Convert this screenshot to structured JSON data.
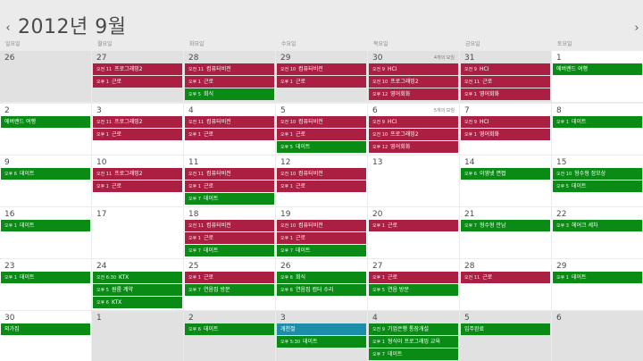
{
  "header": {
    "title": "2012년 9월",
    "prev_icon": "chevron-left-icon",
    "next_icon": "chevron-right-icon"
  },
  "weekdays": [
    "일요일",
    "월요일",
    "화요일",
    "수요일",
    "목요일",
    "금요일",
    "토요일"
  ],
  "colors": {
    "red": "#ab1f43",
    "green": "#0a8b15",
    "teal": "#1d8ea9",
    "cell": "#ffffff",
    "other_month": "#e1e1e1",
    "background": "#ebebeb"
  },
  "weeks": [
    [
      {
        "day": "26",
        "other": true,
        "events": []
      },
      {
        "day": "27",
        "other": true,
        "events": [
          {
            "time": "오전 11",
            "title": "프로그래밍2",
            "color": "red"
          },
          {
            "time": "오후 1",
            "title": "근로",
            "color": "red"
          }
        ]
      },
      {
        "day": "28",
        "other": true,
        "events": [
          {
            "time": "오전 11",
            "title": "컴퓨터비전",
            "color": "red"
          },
          {
            "time": "오후 1",
            "title": "근로",
            "color": "red"
          },
          {
            "time": "오후 5",
            "title": "회식",
            "color": "green"
          }
        ]
      },
      {
        "day": "29",
        "other": true,
        "events": [
          {
            "time": "오전 10",
            "title": "컴퓨터비전",
            "color": "red"
          },
          {
            "time": "오후 1",
            "title": "근로",
            "color": "red"
          }
        ]
      },
      {
        "day": "30",
        "other": true,
        "more": "4개의 모임",
        "events": [
          {
            "time": "오전 9",
            "title": "HCI",
            "color": "red"
          },
          {
            "time": "오전 10",
            "title": "프로그래밍2",
            "color": "red"
          },
          {
            "time": "오후 12",
            "title": "영어회화",
            "color": "red"
          }
        ]
      },
      {
        "day": "31",
        "other": true,
        "events": [
          {
            "time": "오전 9",
            "title": "HCI",
            "color": "red"
          },
          {
            "time": "오전 11",
            "title": "근로",
            "color": "red"
          },
          {
            "time": "오후 1",
            "title": "영어회화",
            "color": "red"
          }
        ]
      },
      {
        "day": "1",
        "other": false,
        "events": [
          {
            "time": "",
            "title": "에버랜드 여행",
            "color": "green"
          }
        ]
      }
    ],
    [
      {
        "day": "2",
        "other": false,
        "events": [
          {
            "time": "",
            "title": "에버랜드 여행",
            "color": "green"
          }
        ]
      },
      {
        "day": "3",
        "other": false,
        "events": [
          {
            "time": "오전 11",
            "title": "프로그래밍2",
            "color": "red"
          },
          {
            "time": "오후 1",
            "title": "근로",
            "color": "red"
          }
        ]
      },
      {
        "day": "4",
        "other": false,
        "events": [
          {
            "time": "오전 11",
            "title": "컴퓨터비전",
            "color": "red"
          },
          {
            "time": "오후 1",
            "title": "근로",
            "color": "red"
          }
        ]
      },
      {
        "day": "5",
        "other": false,
        "events": [
          {
            "time": "오전 10",
            "title": "컴퓨터비전",
            "color": "red"
          },
          {
            "time": "오후 1",
            "title": "근로",
            "color": "red"
          },
          {
            "time": "오후 5",
            "title": "데이트",
            "color": "green"
          }
        ]
      },
      {
        "day": "6",
        "other": false,
        "more": "5개의 모임",
        "events": [
          {
            "time": "오전 9",
            "title": "HCI",
            "color": "red"
          },
          {
            "time": "오전 10",
            "title": "프로그래밍2",
            "color": "red"
          },
          {
            "time": "오후 12",
            "title": "영어회화",
            "color": "red"
          }
        ]
      },
      {
        "day": "7",
        "other": false,
        "events": [
          {
            "time": "오전 9",
            "title": "HCI",
            "color": "red"
          },
          {
            "time": "오후 1",
            "title": "영어회화",
            "color": "red"
          }
        ]
      },
      {
        "day": "8",
        "other": false,
        "events": [
          {
            "time": "오후 1",
            "title": "데이트",
            "color": "green"
          }
        ]
      }
    ],
    [
      {
        "day": "9",
        "other": false,
        "events": [
          {
            "time": "오후 6",
            "title": "데이트",
            "color": "green"
          }
        ]
      },
      {
        "day": "10",
        "other": false,
        "events": [
          {
            "time": "오전 11",
            "title": "프로그래밍2",
            "color": "red"
          },
          {
            "time": "오후 1",
            "title": "근로",
            "color": "red"
          }
        ]
      },
      {
        "day": "11",
        "other": false,
        "events": [
          {
            "time": "오전 11",
            "title": "컴퓨터비전",
            "color": "red"
          },
          {
            "time": "오후 1",
            "title": "근로",
            "color": "red"
          },
          {
            "time": "오후 7",
            "title": "데이트",
            "color": "green"
          }
        ]
      },
      {
        "day": "12",
        "other": false,
        "events": [
          {
            "time": "오전 10",
            "title": "컴퓨터비전",
            "color": "red"
          },
          {
            "time": "오후 1",
            "title": "근로",
            "color": "red"
          }
        ]
      },
      {
        "day": "13",
        "other": false,
        "events": []
      },
      {
        "day": "14",
        "other": false,
        "events": [
          {
            "time": "오후 6",
            "title": "이영넷 면접",
            "color": "green"
          }
        ]
      },
      {
        "day": "15",
        "other": false,
        "events": [
          {
            "time": "오전 10",
            "title": "형수형 정모상",
            "color": "green"
          },
          {
            "time": "오후 5",
            "title": "데이트",
            "color": "green"
          }
        ]
      }
    ],
    [
      {
        "day": "16",
        "other": false,
        "events": [
          {
            "time": "오후 1",
            "title": "데이트",
            "color": "green"
          }
        ]
      },
      {
        "day": "17",
        "other": false,
        "events": []
      },
      {
        "day": "18",
        "other": false,
        "events": [
          {
            "time": "오전 11",
            "title": "컴퓨터비전",
            "color": "red"
          },
          {
            "time": "오후 1",
            "title": "근로",
            "color": "red"
          },
          {
            "time": "오후 7",
            "title": "데이트",
            "color": "green"
          }
        ]
      },
      {
        "day": "19",
        "other": false,
        "events": [
          {
            "time": "오전 10",
            "title": "컴퓨터비전",
            "color": "red"
          },
          {
            "time": "오후 1",
            "title": "근로",
            "color": "red"
          },
          {
            "time": "오후 7",
            "title": "데이트",
            "color": "green"
          }
        ]
      },
      {
        "day": "20",
        "other": false,
        "events": [
          {
            "time": "오후 1",
            "title": "근로",
            "color": "red"
          }
        ]
      },
      {
        "day": "21",
        "other": false,
        "events": [
          {
            "time": "오후 7",
            "title": "형수형 만남",
            "color": "green"
          }
        ]
      },
      {
        "day": "22",
        "other": false,
        "events": [
          {
            "time": "오후 3",
            "title": "헤어크 세차",
            "color": "green"
          }
        ]
      }
    ],
    [
      {
        "day": "23",
        "other": false,
        "events": [
          {
            "time": "오후 1",
            "title": "데이트",
            "color": "green"
          }
        ]
      },
      {
        "day": "24",
        "other": false,
        "events": [
          {
            "time": "오전 6:30",
            "title": "KTX",
            "color": "green"
          },
          {
            "time": "오후 5",
            "title": "원룸 계약",
            "color": "green"
          },
          {
            "time": "오후 6",
            "title": "KTX",
            "color": "green"
          }
        ]
      },
      {
        "day": "25",
        "other": false,
        "events": [
          {
            "time": "오후 1",
            "title": "근로",
            "color": "red"
          },
          {
            "time": "오후 7",
            "title": "연음집 방문",
            "color": "green"
          }
        ]
      },
      {
        "day": "26",
        "other": false,
        "events": [
          {
            "time": "오후 6",
            "title": "회식",
            "color": "green"
          },
          {
            "time": "오후 6",
            "title": "연음집 컴터 수리",
            "color": "green"
          }
        ]
      },
      {
        "day": "27",
        "other": false,
        "events": [
          {
            "time": "오후 1",
            "title": "근로",
            "color": "red"
          },
          {
            "time": "오후 5",
            "title": "연음 방문",
            "color": "green"
          }
        ]
      },
      {
        "day": "28",
        "other": false,
        "events": [
          {
            "time": "오전 11",
            "title": "근로",
            "color": "red"
          }
        ]
      },
      {
        "day": "29",
        "other": false,
        "events": [
          {
            "time": "오후 1",
            "title": "데이트",
            "color": "green"
          }
        ]
      }
    ],
    [
      {
        "day": "30",
        "other": false,
        "events": [
          {
            "time": "",
            "title": "외가집",
            "color": "green"
          }
        ]
      },
      {
        "day": "1",
        "other": true,
        "events": []
      },
      {
        "day": "2",
        "other": true,
        "events": [
          {
            "time": "오후 6",
            "title": "데이트",
            "color": "green"
          }
        ]
      },
      {
        "day": "3",
        "other": true,
        "events": [
          {
            "time": "",
            "title": "개천절",
            "color": "teal"
          },
          {
            "time": "오후 5:30",
            "title": "데이트",
            "color": "green"
          }
        ]
      },
      {
        "day": "4",
        "other": true,
        "events": [
          {
            "time": "오전 9",
            "title": "기업은행 통장개설",
            "color": "green"
          },
          {
            "time": "오후 1",
            "title": "형식이 프로그래밍 교육",
            "color": "green"
          },
          {
            "time": "오후 7",
            "title": "데이트",
            "color": "green"
          }
        ]
      },
      {
        "day": "5",
        "other": true,
        "events": [
          {
            "time": "",
            "title": "입주완료",
            "color": "green"
          }
        ]
      },
      {
        "day": "6",
        "other": true,
        "events": []
      }
    ]
  ]
}
